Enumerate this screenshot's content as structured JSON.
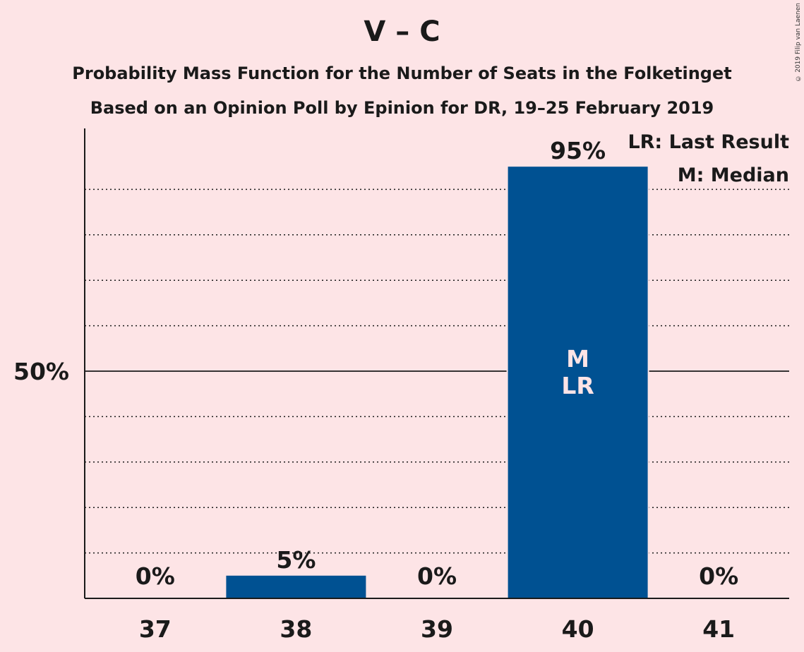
{
  "title": "V – C",
  "subtitle1": "Probability Mass Function for the Number of Seats in the Folketinget",
  "subtitle2": "Based on an Opinion Poll by Epinion for DR, 19–25 February 2019",
  "copyright": "© 2019 Filip van Laenen",
  "legend": {
    "last_result": "LR: Last Result",
    "median": "M: Median"
  },
  "colors": {
    "background": "#fde4e6",
    "bar": "#005192",
    "text": "#1a1a1a"
  },
  "chart_data": {
    "type": "bar",
    "categories": [
      "37",
      "38",
      "39",
      "40",
      "41"
    ],
    "values": [
      0,
      5,
      0,
      95,
      0
    ],
    "labels": [
      "0%",
      "5%",
      "0%",
      "95%",
      "0%"
    ],
    "ylim": [
      0,
      100
    ],
    "ytick_labels": [
      {
        "value": 50,
        "label": "50%"
      }
    ],
    "minor_gridlines": [
      10,
      20,
      30,
      40,
      60,
      70,
      80,
      90
    ],
    "bar_markers": [
      {
        "category": "40",
        "text": [
          "M",
          "LR"
        ]
      }
    ],
    "xlabel": "",
    "ylabel": ""
  }
}
